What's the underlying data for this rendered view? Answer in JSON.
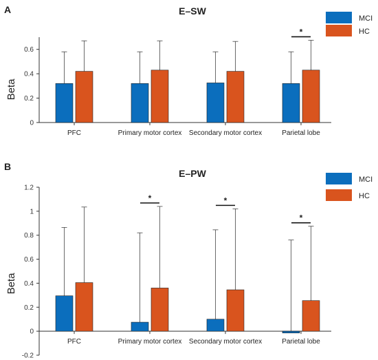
{
  "chart_data": [
    {
      "type": "bar",
      "panel": "A",
      "title": "E–SW",
      "ylabel": "Beta",
      "ylim": [
        0,
        0.7
      ],
      "yticks": [
        "0",
        "0.2",
        "0.4",
        "0.6"
      ],
      "categories": [
        "PFC",
        "Primary motor cortex",
        "Secondary motor cortex",
        "Parietal lobe"
      ],
      "series": [
        {
          "name": "MCI",
          "color": "#0b6ebd",
          "values": [
            0.32,
            0.32,
            0.325,
            0.32
          ],
          "upper": [
            0.58,
            0.58,
            0.58,
            0.58
          ]
        },
        {
          "name": "HC",
          "color": "#d9541e",
          "values": [
            0.42,
            0.43,
            0.42,
            0.43
          ],
          "upper": [
            0.67,
            0.67,
            0.665,
            0.675
          ]
        }
      ],
      "significance": [
        {
          "category": "Parietal lobe",
          "label": "*"
        }
      ],
      "legend": "top-right",
      "grid": false
    },
    {
      "type": "bar",
      "panel": "B",
      "title": "E–PW",
      "ylabel": "Beta",
      "ylim": [
        -0.2,
        1.2
      ],
      "yticks": [
        "-0.2",
        "0",
        "0.2",
        "0.4",
        "0.6",
        "0.8",
        "1",
        "1.2"
      ],
      "categories": [
        "PFC",
        "Primary motor cortex",
        "Secondary motor cortex",
        "Parietal lobe"
      ],
      "series": [
        {
          "name": "MCI",
          "color": "#0b6ebd",
          "values": [
            0.295,
            0.075,
            0.1,
            -0.015
          ],
          "upper": [
            0.865,
            0.82,
            0.845,
            0.76
          ]
        },
        {
          "name": "HC",
          "color": "#d9541e",
          "values": [
            0.405,
            0.36,
            0.345,
            0.255
          ],
          "upper": [
            1.035,
            1.04,
            1.02,
            0.875
          ]
        }
      ],
      "significance": [
        {
          "category": "Primary motor cortex",
          "label": "*"
        },
        {
          "category": "Secondary motor cortex",
          "label": "*"
        },
        {
          "category": "Parietal lobe",
          "label": "*"
        }
      ],
      "legend": "top-right",
      "grid": false
    }
  ]
}
